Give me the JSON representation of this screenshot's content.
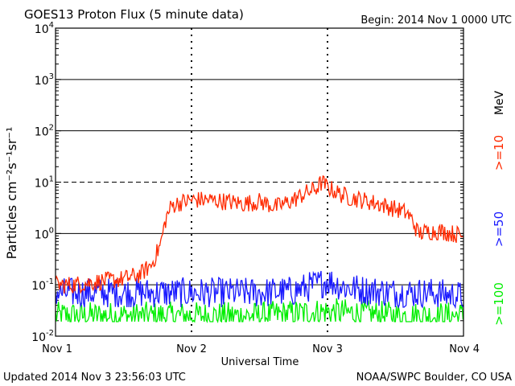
{
  "chart_data": {
    "type": "line",
    "title": "GOES13 Proton Flux (5 minute data)",
    "begin_label": "Begin: 2014 Nov 1 0000 UTC",
    "xlabel": "Universal Time",
    "ylabel": "Particles cm⁻²s⁻¹sr⁻¹",
    "y_scale": "log",
    "ylim": [
      0.01,
      10000
    ],
    "y_ticks": [
      {
        "value": 0.01,
        "base": "10",
        "exp": "-2"
      },
      {
        "value": 0.1,
        "base": "10",
        "exp": "-1"
      },
      {
        "value": 1,
        "base": "10",
        "exp": "0"
      },
      {
        "value": 10,
        "base": "10",
        "exp": "1"
      },
      {
        "value": 100,
        "base": "10",
        "exp": "2"
      },
      {
        "value": 1000,
        "base": "10",
        "exp": "3"
      },
      {
        "value": 10000,
        "base": "10",
        "exp": "4"
      }
    ],
    "x_ticks": [
      "Nov 1",
      "Nov 2",
      "Nov 3",
      "Nov 4"
    ],
    "xlim": [
      "2014-11-01 00:00",
      "2014-11-04 00:00"
    ],
    "grid": "horizontal decade lines; dashed at 10¹; vertical dashed day lines",
    "energy_unit": "MeV",
    "series": [
      {
        "name": ">=10",
        "color": "#ff2a00",
        "times": [
          "2014-11-01 00:00",
          "2014-11-01 03:00",
          "2014-11-01 06:00",
          "2014-11-01 09:00",
          "2014-11-01 12:00",
          "2014-11-01 15:00",
          "2014-11-01 17:00",
          "2014-11-01 18:30",
          "2014-11-01 19:30",
          "2014-11-01 20:30",
          "2014-11-01 22:00",
          "2014-11-02 00:00",
          "2014-11-02 03:00",
          "2014-11-02 06:00",
          "2014-11-02 09:00",
          "2014-11-02 12:00",
          "2014-11-02 15:00",
          "2014-11-02 18:00",
          "2014-11-02 20:00",
          "2014-11-02 22:00",
          "2014-11-02 23:00",
          "2014-11-03 00:00",
          "2014-11-03 02:00",
          "2014-11-03 04:00",
          "2014-11-03 06:00",
          "2014-11-03 09:00",
          "2014-11-03 12:00",
          "2014-11-03 14:00",
          "2014-11-03 15:00",
          "2014-11-03 16:00",
          "2014-11-03 18:00",
          "2014-11-03 20:00",
          "2014-11-03 22:00",
          "2014-11-04 00:00"
        ],
        "values": [
          0.1,
          0.1,
          0.11,
          0.12,
          0.13,
          0.16,
          0.25,
          0.6,
          2.0,
          3.5,
          4.0,
          4.5,
          4.5,
          4.2,
          3.8,
          4.2,
          3.3,
          4.5,
          6.0,
          7.5,
          10.0,
          8.0,
          6.0,
          5.0,
          4.5,
          3.8,
          3.0,
          2.5,
          1.8,
          1.0,
          1.1,
          1.1,
          1.0,
          0.9
        ]
      },
      {
        "name": ">=50",
        "color": "#1a1aff",
        "times": [
          "2014-11-01 00:00",
          "2014-11-01 06:00",
          "2014-11-01 12:00",
          "2014-11-01 18:00",
          "2014-11-02 00:00",
          "2014-11-02 06:00",
          "2014-11-02 12:00",
          "2014-11-02 18:00",
          "2014-11-02 22:00",
          "2014-11-03 00:00",
          "2014-11-03 03:00",
          "2014-11-03 06:00",
          "2014-11-03 12:00",
          "2014-11-03 18:00",
          "2014-11-04 00:00"
        ],
        "values": [
          0.07,
          0.07,
          0.07,
          0.07,
          0.07,
          0.07,
          0.07,
          0.075,
          0.1,
          0.12,
          0.09,
          0.08,
          0.07,
          0.07,
          0.06
        ]
      },
      {
        "name": ">=100",
        "color": "#00ee00",
        "times": [
          "2014-11-01 00:00",
          "2014-11-01 12:00",
          "2014-11-02 00:00",
          "2014-11-02 12:00",
          "2014-11-03 00:00",
          "2014-11-03 12:00",
          "2014-11-04 00:00"
        ],
        "values": [
          0.025,
          0.025,
          0.025,
          0.025,
          0.03,
          0.025,
          0.025
        ]
      }
    ]
  },
  "footer": {
    "updated": "Updated 2014 Nov  3 23:56:03 UTC",
    "source": "NOAA/SWPC Boulder, CO USA"
  }
}
